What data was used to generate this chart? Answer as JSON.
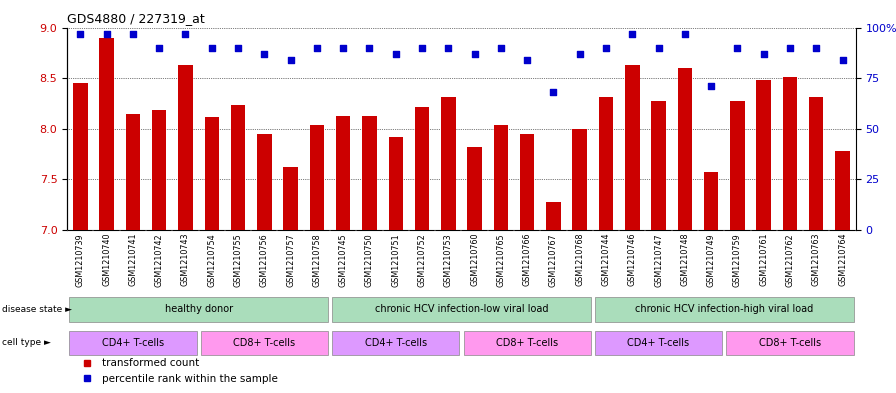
{
  "title": "GDS4880 / 227319_at",
  "samples": [
    "GSM1210739",
    "GSM1210740",
    "GSM1210741",
    "GSM1210742",
    "GSM1210743",
    "GSM1210754",
    "GSM1210755",
    "GSM1210756",
    "GSM1210757",
    "GSM1210758",
    "GSM1210745",
    "GSM1210750",
    "GSM1210751",
    "GSM1210752",
    "GSM1210753",
    "GSM1210760",
    "GSM1210765",
    "GSM1210766",
    "GSM1210767",
    "GSM1210768",
    "GSM1210744",
    "GSM1210746",
    "GSM1210747",
    "GSM1210748",
    "GSM1210749",
    "GSM1210759",
    "GSM1210761",
    "GSM1210762",
    "GSM1210763",
    "GSM1210764"
  ],
  "bar_values": [
    8.45,
    8.9,
    8.15,
    8.18,
    8.63,
    8.12,
    8.23,
    7.95,
    7.62,
    8.04,
    8.13,
    8.13,
    7.92,
    8.21,
    8.31,
    7.82,
    8.04,
    7.95,
    7.28,
    8.0,
    8.31,
    8.63,
    8.27,
    8.6,
    7.57,
    8.27,
    8.48,
    8.51,
    8.31,
    7.78
  ],
  "percentile_values": [
    97,
    97,
    97,
    90,
    97,
    90,
    90,
    87,
    84,
    90,
    90,
    90,
    87,
    90,
    90,
    87,
    90,
    84,
    68,
    87,
    90,
    97,
    90,
    97,
    71,
    90,
    87,
    90,
    90,
    84
  ],
  "bar_color": "#cc0000",
  "dot_color": "#0000cc",
  "ylim_left": [
    7.0,
    9.0
  ],
  "ylim_right": [
    0,
    100
  ],
  "yticks_left": [
    7.0,
    7.5,
    8.0,
    8.5,
    9.0
  ],
  "yticks_right": [
    0,
    25,
    50,
    75,
    100
  ],
  "ytick_labels_right": [
    "0",
    "25",
    "50",
    "75",
    "100%"
  ],
  "disease_groups": [
    {
      "label": "healthy donor",
      "start": 0,
      "end": 10
    },
    {
      "label": "chronic HCV infection-low viral load",
      "start": 10,
      "end": 20
    },
    {
      "label": "chronic HCV infection-high viral load",
      "start": 20,
      "end": 30
    }
  ],
  "cell_groups": [
    {
      "label": "CD4+ T-cells",
      "start": 0,
      "end": 5,
      "color": "#dd99ff"
    },
    {
      "label": "CD8+ T-cells",
      "start": 5,
      "end": 10,
      "color": "#ff99ee"
    },
    {
      "label": "CD4+ T-cells",
      "start": 10,
      "end": 15,
      "color": "#dd99ff"
    },
    {
      "label": "CD8+ T-cells",
      "start": 15,
      "end": 20,
      "color": "#ff99ee"
    },
    {
      "label": "CD4+ T-cells",
      "start": 20,
      "end": 25,
      "color": "#dd99ff"
    },
    {
      "label": "CD8+ T-cells",
      "start": 25,
      "end": 30,
      "color": "#ff99ee"
    }
  ],
  "disease_group_color": "#aaddbb",
  "xticklabel_bg": "#cccccc",
  "legend_bar_label": "transformed count",
  "legend_dot_label": "percentile rank within the sample",
  "title_fontsize": 9,
  "bar_width": 0.55
}
